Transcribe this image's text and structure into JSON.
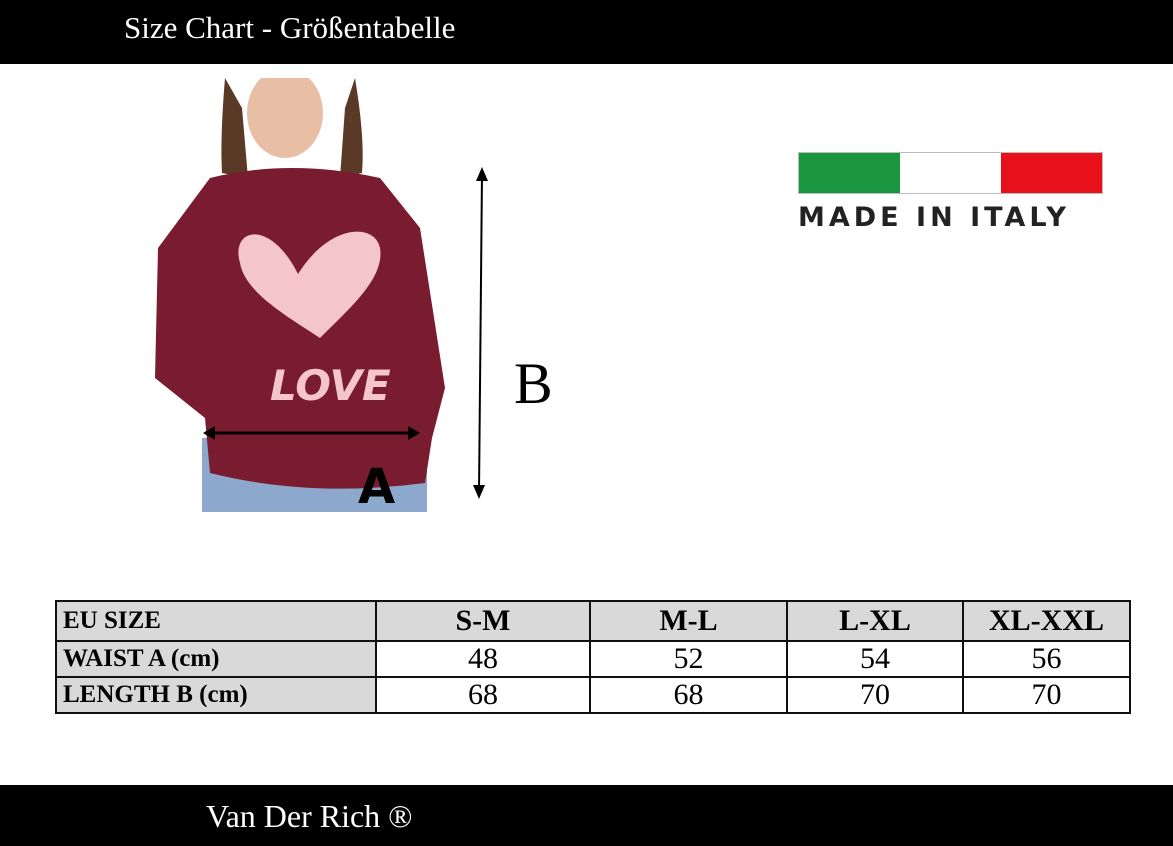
{
  "header": {
    "title": "Size Chart - Größentabelle"
  },
  "footer": {
    "brand": "Van Der Rich ®"
  },
  "product_image": {
    "print_text": "LOVE",
    "label_a": "A",
    "label_b": "B",
    "garment_color": "#7a1c30"
  },
  "badge": {
    "text": "MADE IN ITALY",
    "flag_colors": [
      "#1a9641",
      "#ffffff",
      "#e8101a"
    ]
  },
  "size_table": {
    "header": [
      "EU SIZE",
      "S-M",
      "M-L",
      "L-XL",
      "XL-XXL"
    ],
    "rows": [
      {
        "label": "WAIST A (cm)",
        "values": [
          "48",
          "52",
          "54",
          "56"
        ]
      },
      {
        "label": "LENGTH B (cm)",
        "values": [
          "68",
          "68",
          "70",
          "70"
        ]
      }
    ]
  }
}
